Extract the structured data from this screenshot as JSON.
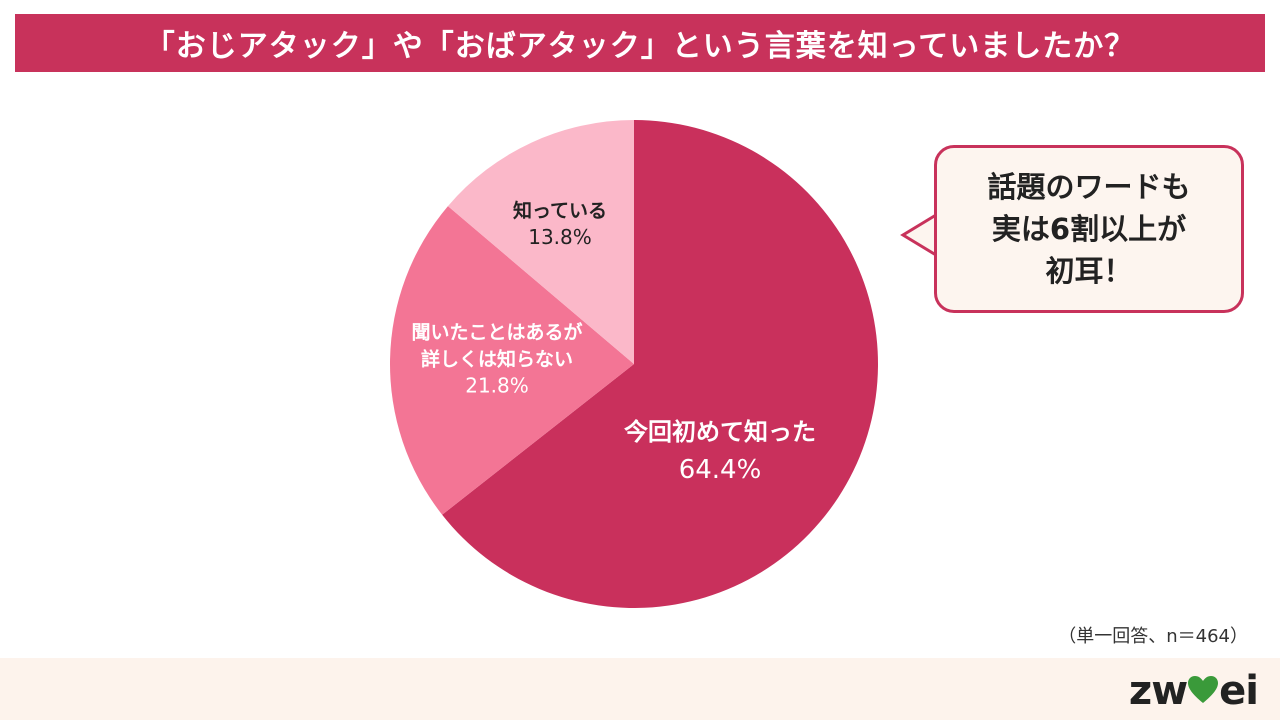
{
  "header": {
    "title": "「おじアタック」や「おばアタック」という言葉を知っていましたか？"
  },
  "colors": {
    "title_bg": "#c8325b",
    "footer_bg": "#fdf3ec",
    "callout_bg": "#fdf5ef",
    "callout_border": "#c8325b",
    "logo_heart": "#3a9a3a"
  },
  "chart_data": {
    "type": "pie",
    "start": "12 o'clock",
    "direction": "clockwise",
    "slices": [
      {
        "label_lines": [
          "今回初めて知った"
        ],
        "value": 64.4,
        "value_label": "64.4%",
        "color": "#c9305c",
        "text_color": "#ffffff"
      },
      {
        "label_lines": [
          "聞いたことはあるが",
          "詳しくは知らない"
        ],
        "value": 21.8,
        "value_label": "21.8%",
        "color": "#f37595",
        "text_color": "#ffffff"
      },
      {
        "label_lines": [
          "知っている"
        ],
        "value": 13.8,
        "value_label": "13.8%",
        "color": "#fbb8c9",
        "text_color": "#222222"
      }
    ]
  },
  "callout": {
    "lines": [
      "話題のワードも",
      "実は6割以上が",
      "初耳！"
    ]
  },
  "note": "（単一回答、n＝464）",
  "footer": {
    "logo_text_left": "zw",
    "logo_text_right": "ei",
    "logo_heart": "heart-icon"
  }
}
